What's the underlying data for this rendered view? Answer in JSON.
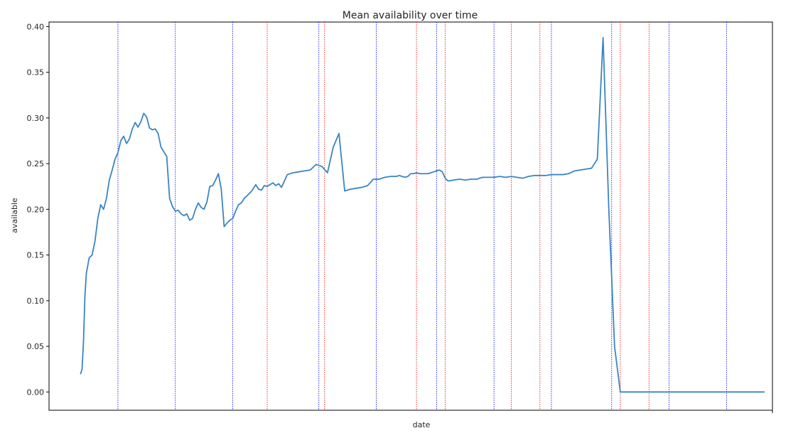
{
  "chart_data": {
    "type": "line",
    "title": "Mean availability over time",
    "xlabel": "date",
    "ylabel": "available",
    "ylim": [
      -0.02,
      0.405
    ],
    "xlim": [
      -11,
      241
    ],
    "yticks": [
      0.0,
      0.05,
      0.1,
      0.15,
      0.2,
      0.25,
      0.3,
      0.35,
      0.4
    ],
    "ytick_labels": [
      "0.00",
      "0.05",
      "0.10",
      "0.15",
      "0.20",
      "0.25",
      "0.30",
      "0.35",
      "0.40"
    ],
    "xticks": [
      241
    ],
    "grid": false,
    "line_color": "#3a85c3",
    "blue_vline_color": "#0000ff",
    "red_vline_color": "#ff0000",
    "vlines_blue": [
      13,
      33,
      53,
      83,
      103,
      124,
      144,
      164,
      185,
      205,
      225
    ],
    "vlines_red": [
      65,
      85,
      117,
      127,
      150,
      160,
      188,
      198
    ],
    "series": [
      {
        "x": [
          0,
          0.5,
          1,
          1.5,
          2,
          3,
          4,
          5,
          6,
          7,
          8,
          9,
          10,
          11,
          12,
          13,
          14,
          15,
          16,
          17,
          18,
          19,
          20,
          21,
          22,
          23,
          24,
          25,
          26,
          27,
          28,
          29,
          30,
          31,
          32,
          33,
          34,
          35,
          36,
          37,
          38,
          39,
          40,
          41,
          42,
          43,
          44,
          45,
          46,
          47,
          48,
          49,
          50,
          51,
          52,
          53,
          54,
          55,
          56,
          57,
          58,
          59,
          59.6,
          60,
          61,
          62,
          63,
          64,
          65,
          66,
          67,
          68,
          69,
          70,
          72,
          74,
          76,
          78,
          80,
          82,
          84,
          86,
          88,
          90,
          92,
          94,
          96,
          98,
          100,
          102,
          104,
          106,
          108,
          110,
          111,
          112,
          113,
          114,
          115,
          116,
          117,
          118,
          119,
          120,
          121,
          122,
          123,
          124,
          125,
          126,
          127,
          128,
          130,
          132,
          134,
          136,
          138,
          140,
          142,
          144,
          146,
          148,
          150,
          152,
          154,
          156,
          158,
          160,
          162,
          164,
          166,
          168,
          170,
          172,
          174,
          176,
          178,
          180,
          182,
          184,
          186,
          188,
          190,
          192,
          194,
          196,
          198,
          200,
          202,
          204,
          206,
          208,
          210,
          212,
          214,
          216,
          218,
          220,
          222,
          224,
          226,
          228,
          230,
          232,
          234,
          236,
          237,
          237.4,
          237.8,
          238.1
        ],
        "y": [
          0.02,
          0.025,
          0.055,
          0.105,
          0.13,
          0.147,
          0.15,
          0.165,
          0.19,
          0.205,
          0.2,
          0.212,
          0.232,
          0.243,
          0.255,
          0.262,
          0.275,
          0.28,
          0.272,
          0.277,
          0.288,
          0.295,
          0.29,
          0.296,
          0.305,
          0.301,
          0.289,
          0.287,
          0.288,
          0.283,
          0.268,
          0.263,
          0.258,
          0.212,
          0.203,
          0.198,
          0.199,
          0.195,
          0.193,
          0.195,
          0.188,
          0.19,
          0.2,
          0.207,
          0.202,
          0.2,
          0.208,
          0.225,
          0.226,
          0.232,
          0.239,
          0.222,
          0.181,
          0.185,
          0.188,
          0.19,
          0.198,
          0.205,
          0.207,
          0.212,
          0.215,
          0.218,
          0.22,
          0.222,
          0.227,
          0.222,
          0.221,
          0.226,
          0.225,
          0.227,
          0.229,
          0.226,
          0.228,
          0.224,
          0.238,
          0.24,
          0.241,
          0.242,
          0.243,
          0.249,
          0.247,
          0.24,
          0.268,
          0.283,
          0.22,
          0.222,
          0.223,
          0.224,
          0.226,
          0.233,
          0.233,
          0.235,
          0.236,
          0.236,
          0.237,
          0.236,
          0.235,
          0.236,
          0.239,
          0.239,
          0.24,
          0.239,
          0.239,
          0.239,
          0.239,
          0.24,
          0.241,
          0.242,
          0.243,
          0.241,
          0.234,
          0.231,
          0.232,
          0.233,
          0.232,
          0.233,
          0.233,
          0.235,
          0.235,
          0.235,
          0.236,
          0.235,
          0.236,
          0.235,
          0.234,
          0.236,
          0.237,
          0.237,
          0.237,
          0.238,
          0.238,
          0.238,
          0.239,
          0.242,
          0.243,
          0.244,
          0.245,
          0.255,
          0.388,
          0.2,
          0.05,
          0.0,
          0.0,
          0.0,
          0.0,
          0.0,
          0.0,
          0.0,
          0.0,
          0.0,
          0.0,
          0.0,
          0.0,
          0.0,
          0.0,
          0.0,
          0.0,
          0.0,
          0.0,
          0.0,
          0.0,
          0.0,
          0.0,
          0.0,
          0.0,
          0.0,
          0.0,
          0.0,
          0.0,
          0.0
        ]
      }
    ]
  }
}
